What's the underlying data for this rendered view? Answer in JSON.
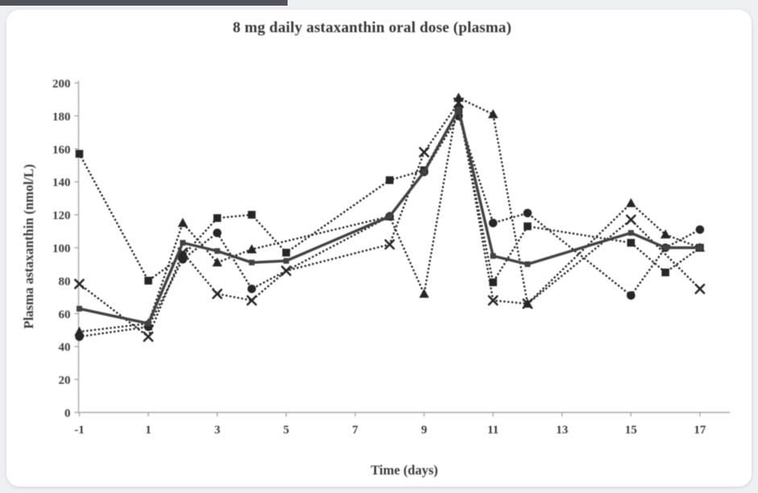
{
  "page": {
    "background_color": "#eff0f2",
    "top_strip_color": "#53535b",
    "card_background": "#ffffff"
  },
  "chart_data": {
    "type": "line",
    "title": "8 mg daily astaxanthin oral dose (plasma)",
    "xlabel": "Time (days)",
    "ylabel": "Plasma astaxanthin (nmol/L)",
    "xlim": [
      -2,
      18
    ],
    "ylim": [
      0,
      200
    ],
    "x_ticks": [
      -1,
      1,
      3,
      5,
      7,
      9,
      11,
      13,
      15,
      17
    ],
    "y_ticks": [
      0,
      20,
      40,
      60,
      80,
      100,
      120,
      140,
      160,
      180,
      200
    ],
    "grid": false,
    "legend_position": "none",
    "x": [
      -1,
      1,
      2,
      3,
      4,
      5,
      8,
      9,
      10,
      11,
      12,
      15,
      16,
      17
    ],
    "series": [
      {
        "name": "subject-square",
        "marker": "square",
        "line": "dotted",
        "values": [
          157,
          80,
          95,
          118,
          120,
          97,
          141,
          147,
          184,
          79,
          113,
          103,
          85,
          100
        ]
      },
      {
        "name": "subject-circle",
        "marker": "circle",
        "line": "dotted",
        "values": [
          46,
          52,
          93,
          109,
          75,
          null,
          119,
          146,
          180,
          115,
          121,
          71,
          100,
          111
        ]
      },
      {
        "name": "subject-triangle",
        "marker": "triangle",
        "line": "dotted",
        "values": [
          49,
          54,
          115,
          91,
          99,
          null,
          119,
          72,
          191,
          181,
          66,
          127,
          108,
          100
        ]
      },
      {
        "name": "subject-x",
        "marker": "x",
        "line": "dotted",
        "values": [
          78,
          46,
          97,
          72,
          68,
          86,
          102,
          158,
          188,
          68,
          66,
          117,
          null,
          75
        ]
      },
      {
        "name": "median-line",
        "marker": "small-square",
        "line": "solid",
        "values": [
          63,
          54,
          103,
          98,
          91,
          92,
          119,
          146,
          184,
          95,
          90,
          109,
          100,
          100
        ]
      }
    ],
    "colors": {
      "data": "#262626",
      "median": "#424242",
      "axis": "#a9a9a9",
      "tick_text": "#3d3d3d",
      "title_text": "#363636"
    }
  }
}
